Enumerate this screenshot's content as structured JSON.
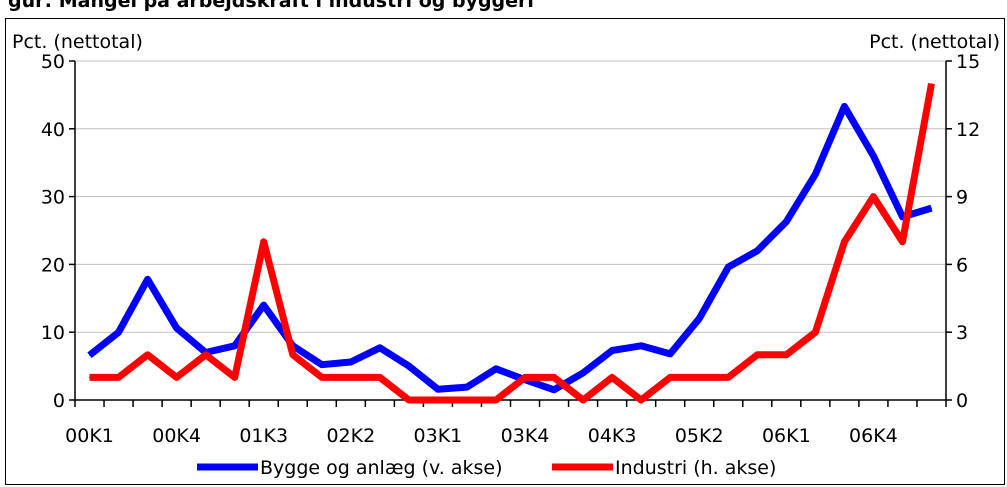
{
  "chart_data": {
    "type": "line",
    "title": "gur: Mangel på arbejdskraft i industri og byggeri",
    "left_unit_label": "Pct. (nettotal)",
    "right_unit_label": "Pct. (nettotal)",
    "left_ylim": [
      0,
      50
    ],
    "right_ylim": [
      0,
      15
    ],
    "left_yticks": [
      "0",
      "10",
      "20",
      "30",
      "40",
      "50"
    ],
    "right_yticks": [
      "0",
      "3",
      "6",
      "9",
      "12",
      "15"
    ],
    "x_tick_labels": [
      "00K1",
      "00K4",
      "01K3",
      "02K2",
      "03K1",
      "03K4",
      "04K3",
      "05K2",
      "06K1",
      "06K4"
    ],
    "categories": [
      "00K1",
      "00K2",
      "00K3",
      "00K4",
      "01K1",
      "01K2",
      "01K3",
      "01K4",
      "02K1",
      "02K2",
      "02K3",
      "02K4",
      "03K1",
      "03K2",
      "03K3",
      "03K4",
      "04K1",
      "04K2",
      "04K3",
      "04K4",
      "05K1",
      "05K2",
      "05K3",
      "05K4",
      "06K1",
      "06K2",
      "06K3",
      "06K4",
      "07K1",
      "07K2"
    ],
    "grid": true,
    "legend_position": "bottom",
    "series": [
      {
        "name": "Bygge og anlæg (v. akse)",
        "axis": "left",
        "color": "#0000ff",
        "values": [
          6.6,
          10,
          17.8,
          10.6,
          7,
          8,
          14,
          8,
          5.2,
          5.6,
          7.7,
          5,
          1.6,
          1.9,
          4.6,
          3,
          1.5,
          4,
          7.3,
          8,
          6.8,
          12,
          19.6,
          22,
          26.3,
          33.3,
          43.3,
          36,
          27,
          28.3
        ]
      },
      {
        "name": "Industri (h. akse)",
        "axis": "right",
        "color": "#ff0000",
        "values": [
          1,
          1,
          2,
          1,
          2,
          1,
          7,
          2,
          1,
          1,
          1,
          0,
          0,
          0,
          0,
          1,
          1,
          0,
          1,
          0,
          1,
          1,
          1,
          2,
          2,
          3,
          7,
          9,
          7,
          14
        ]
      }
    ]
  }
}
